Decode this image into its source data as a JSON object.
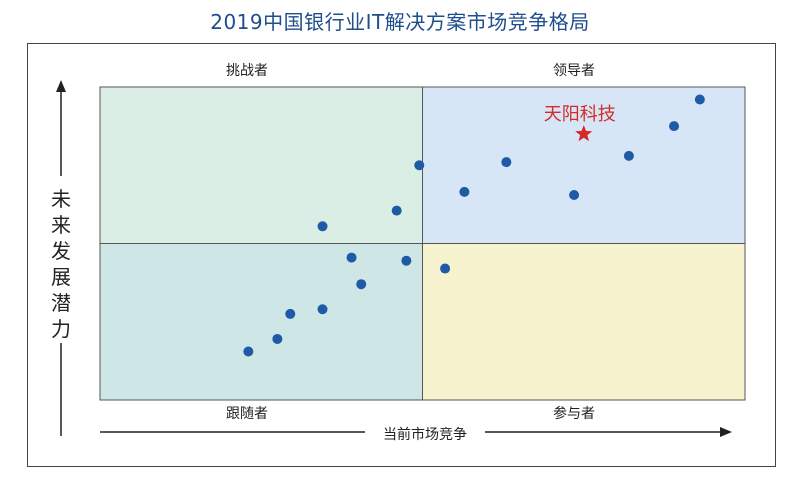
{
  "title": "2019中国银行业IT解决方案市场竞争格局",
  "chart_data": {
    "type": "scatter",
    "title": "2019中国银行业IT解决方案市场竞争格局",
    "xlabel": "当前市场竞争",
    "ylabel": "未来发展潜力",
    "quadrants": {
      "top_left": "挑战者",
      "top_right": "领导者",
      "bottom_left": "跟随者",
      "bottom_right": "参与者"
    },
    "quadrant_colors": {
      "top_left": "#dbeee6",
      "top_right": "#d7e6f6",
      "bottom_left": "#cfe6e6",
      "bottom_right": "#f7f3cf"
    },
    "point_color": "#1f5aa6",
    "points": [
      {
        "x": 0.23,
        "y": 0.155
      },
      {
        "x": 0.275,
        "y": 0.195
      },
      {
        "x": 0.295,
        "y": 0.275
      },
      {
        "x": 0.345,
        "y": 0.29
      },
      {
        "x": 0.345,
        "y": 0.555
      },
      {
        "x": 0.39,
        "y": 0.455
      },
      {
        "x": 0.405,
        "y": 0.37
      },
      {
        "x": 0.46,
        "y": 0.605
      },
      {
        "x": 0.475,
        "y": 0.445
      },
      {
        "x": 0.495,
        "y": 0.75
      },
      {
        "x": 0.535,
        "y": 0.42
      },
      {
        "x": 0.565,
        "y": 0.665
      },
      {
        "x": 0.63,
        "y": 0.76
      },
      {
        "x": 0.735,
        "y": 0.655
      },
      {
        "x": 0.82,
        "y": 0.78
      },
      {
        "x": 0.89,
        "y": 0.875
      },
      {
        "x": 0.93,
        "y": 0.96
      }
    ],
    "highlight": {
      "label": "天阳科技",
      "x": 0.75,
      "y": 0.85,
      "color": "#d42a2a"
    }
  }
}
